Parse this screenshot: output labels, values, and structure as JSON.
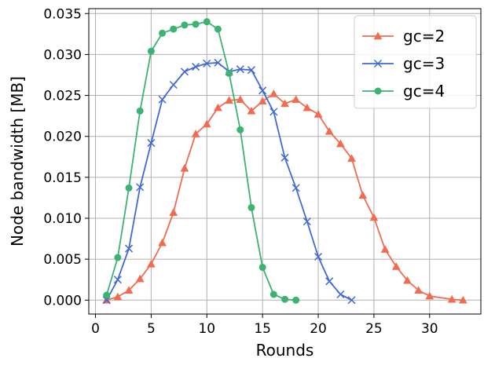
{
  "chart_data": {
    "type": "line",
    "title": "",
    "xlabel": "Rounds",
    "ylabel": "Node bandwidth [MB]",
    "xlim": [
      -0.6,
      34.6
    ],
    "ylim": [
      -0.0017,
      0.0356
    ],
    "xticks": [
      0,
      5,
      10,
      15,
      20,
      25,
      30
    ],
    "xtick_labels": [
      "0",
      "5",
      "10",
      "15",
      "20",
      "25",
      "30"
    ],
    "yticks": [
      0.0,
      0.005,
      0.01,
      0.015,
      0.02,
      0.025,
      0.03,
      0.035
    ],
    "ytick_labels": [
      "0.000",
      "0.005",
      "0.010",
      "0.015",
      "0.020",
      "0.025",
      "0.030",
      "0.035"
    ],
    "grid": true,
    "legend_position": "top-right",
    "series": [
      {
        "name": "gc=2",
        "color": "#f26b4f",
        "marker": "triangle",
        "x": [
          1,
          2,
          3,
          4,
          5,
          6,
          7,
          8,
          9,
          10,
          11,
          12,
          13,
          14,
          15,
          16,
          17,
          18,
          19,
          20,
          21,
          22,
          23,
          24,
          25,
          26,
          27,
          28,
          29,
          30,
          32,
          33
        ],
        "y": [
          0.0,
          0.0004,
          0.0012,
          0.0026,
          0.0044,
          0.007,
          0.0107,
          0.0161,
          0.0203,
          0.0215,
          0.0235,
          0.0244,
          0.0245,
          0.0231,
          0.0243,
          0.0252,
          0.024,
          0.0245,
          0.0235,
          0.0227,
          0.0206,
          0.0191,
          0.0173,
          0.0128,
          0.0101,
          0.0062,
          0.0041,
          0.0024,
          0.0012,
          0.0005,
          0.0001,
          0.0
        ]
      },
      {
        "name": "gc=3",
        "color": "#4169d6",
        "marker": "x",
        "x": [
          1,
          2,
          3,
          4,
          5,
          6,
          7,
          8,
          9,
          10,
          11,
          12,
          13,
          14,
          15,
          16,
          17,
          18,
          19,
          20,
          21,
          22,
          23
        ],
        "y": [
          0.0,
          0.0025,
          0.0063,
          0.0138,
          0.0192,
          0.0245,
          0.0263,
          0.0279,
          0.0285,
          0.0289,
          0.029,
          0.0279,
          0.0282,
          0.0281,
          0.0256,
          0.023,
          0.0174,
          0.0137,
          0.0096,
          0.0053,
          0.0023,
          0.0007,
          0.0
        ]
      },
      {
        "name": "gc=4",
        "color": "#3cb371",
        "marker": "circle",
        "x": [
          1,
          2,
          3,
          4,
          5,
          6,
          7,
          8,
          9,
          10,
          11,
          12,
          13,
          14,
          15,
          16,
          17,
          18
        ],
        "y": [
          0.0006,
          0.0052,
          0.0137,
          0.0231,
          0.0304,
          0.0326,
          0.0331,
          0.0336,
          0.0337,
          0.034,
          0.0331,
          0.0277,
          0.0208,
          0.0113,
          0.004,
          0.0007,
          0.0001,
          0.0
        ]
      }
    ]
  }
}
